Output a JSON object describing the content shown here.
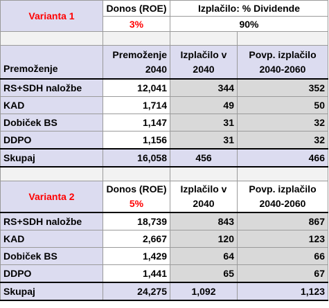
{
  "variant1": {
    "name": "Varianta 1",
    "col_roe_label": "Donos (ROE)",
    "roe_value": "3%",
    "payout_label": "Izplačilo: % Dividende",
    "payout_value": "90%",
    "header": {
      "asset": "Premoženje",
      "assets_2040": [
        "Premoženje",
        "2040"
      ],
      "payout_2040": [
        "Izplačilo v",
        "2040"
      ],
      "avg_payout": [
        "Povp. izplačilo",
        "2040-2060"
      ]
    },
    "rows": [
      {
        "name": "RS+SDH naložbe",
        "assets": "12,041",
        "payout": "344",
        "avg": "352"
      },
      {
        "name": "KAD",
        "assets": "1,714",
        "payout": "49",
        "avg": "50"
      },
      {
        "name": "Dobiček BS",
        "assets": "1,147",
        "payout": "31",
        "avg": "32"
      },
      {
        "name": "DDPO",
        "assets": "1,156",
        "payout": "31",
        "avg": "32"
      }
    ],
    "total": {
      "name": "Skupaj",
      "assets": "16,058",
      "payout": "456",
      "avg": "466"
    }
  },
  "variant2": {
    "name": "Varianta 2",
    "col_roe_label": "Donos (ROE)",
    "roe_value": "5%",
    "header": {
      "payout_2040": [
        "Izplačilo v",
        "2040"
      ],
      "avg_payout": [
        "Povp. izplačilo",
        "2040-2060"
      ]
    },
    "rows": [
      {
        "name": "RS+SDH naložbe",
        "assets": "18,739",
        "payout": "843",
        "avg": "867"
      },
      {
        "name": "KAD",
        "assets": "2,667",
        "payout": "120",
        "avg": "123"
      },
      {
        "name": "Dobiček BS",
        "assets": "1,429",
        "payout": "64",
        "avg": "66"
      },
      {
        "name": "DDPO",
        "assets": "1,441",
        "payout": "65",
        "avg": "67"
      }
    ],
    "total": {
      "name": "Skupaj",
      "assets": "24,275",
      "payout": "1,092",
      "avg": "1,123"
    }
  },
  "colors": {
    "header_bg": "#dcdcf0",
    "shaded_bg": "#d9d9d9",
    "accent_red": "#ff0000"
  }
}
